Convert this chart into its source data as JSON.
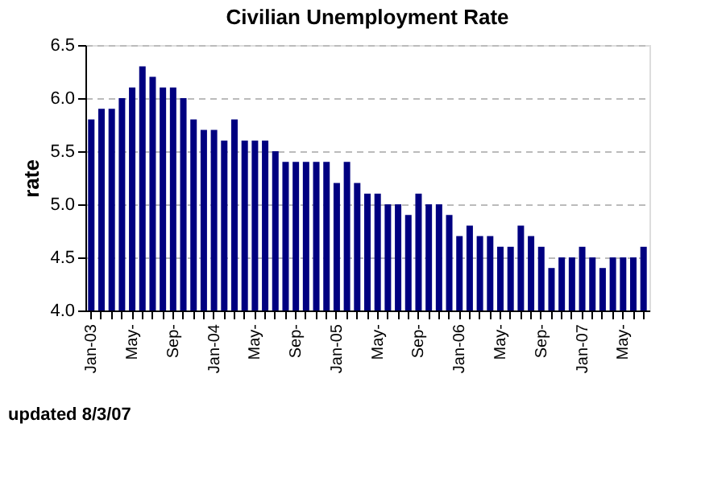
{
  "chart_data": {
    "type": "bar",
    "title": "Civilian Unemployment Rate",
    "ylabel": "rate",
    "categories": [
      "Jan-03",
      null,
      null,
      null,
      "May-",
      null,
      null,
      null,
      "Sep-",
      null,
      null,
      null,
      "Jan-04",
      null,
      null,
      null,
      "May-",
      null,
      null,
      null,
      "Sep-",
      null,
      null,
      null,
      "Jan-05",
      null,
      null,
      null,
      "May-",
      null,
      null,
      null,
      "Sep-",
      null,
      null,
      null,
      "Jan-06",
      null,
      null,
      null,
      "May-",
      null,
      null,
      null,
      "Sep-",
      null,
      null,
      null,
      "Jan-07",
      null,
      null,
      null,
      "May-",
      null,
      null
    ],
    "values": [
      5.8,
      5.9,
      5.9,
      6.0,
      6.1,
      6.3,
      6.2,
      6.1,
      6.1,
      6.0,
      5.8,
      5.7,
      5.7,
      5.6,
      5.8,
      5.6,
      5.6,
      5.6,
      5.5,
      5.4,
      5.4,
      5.4,
      5.4,
      5.4,
      5.2,
      5.4,
      5.2,
      5.1,
      5.1,
      5.0,
      5.0,
      4.9,
      5.1,
      5.0,
      5.0,
      4.9,
      4.7,
      4.8,
      4.7,
      4.7,
      4.6,
      4.6,
      4.8,
      4.7,
      4.6,
      4.4,
      4.5,
      4.5,
      4.6,
      4.5,
      4.4,
      4.5,
      4.5,
      4.5,
      4.6
    ],
    "color": "#000080",
    "ylim": [
      4,
      6.5
    ],
    "yticks": [
      {
        "value": 4,
        "label": "4.0"
      },
      {
        "value": 4.5,
        "label": "4.5"
      },
      {
        "value": 5,
        "label": "5.0"
      },
      {
        "value": 5.5,
        "label": "5.5"
      },
      {
        "value": 6,
        "label": "6.0"
      },
      {
        "value": 6.5,
        "label": "6.5"
      }
    ],
    "grid": "y",
    "annotations": [
      "updated 8/3/07"
    ]
  }
}
